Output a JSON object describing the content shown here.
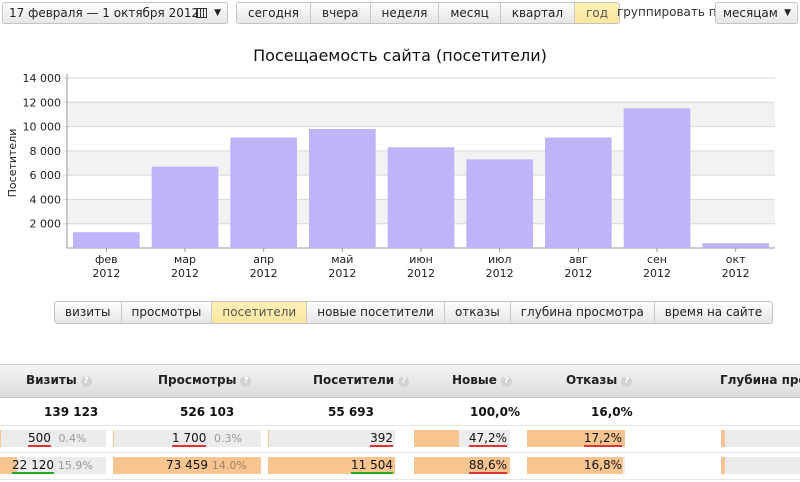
{
  "toolbar": {
    "date_range": "17 февраля — 1 октября 2012",
    "period_buttons": [
      "сегодня",
      "вчера",
      "неделя",
      "месяц",
      "квартал",
      "год"
    ],
    "active_period": "год",
    "group_label": "группировать по",
    "group_value": "месяцам"
  },
  "chart_data": {
    "type": "bar",
    "title": "Посещаемость сайта (посетители)",
    "ylabel": "Посетители",
    "ylim": [
      0,
      14000
    ],
    "yticks": [
      "2 000",
      "4 000",
      "6 000",
      "8 000",
      "10 000",
      "12 000",
      "14 000"
    ],
    "ytick_values": [
      2000,
      4000,
      6000,
      8000,
      10000,
      12000,
      14000
    ],
    "categories": [
      "фев\n2012",
      "мар\n2012",
      "апр\n2012",
      "май\n2012",
      "июн\n2012",
      "июл\n2012",
      "авг\n2012",
      "сен\n2012",
      "окт\n2012"
    ],
    "months": [
      "фев",
      "мар",
      "апр",
      "май",
      "июн",
      "июл",
      "авг",
      "сен",
      "окт"
    ],
    "year": "2012",
    "values": [
      1300,
      6700,
      9100,
      9800,
      8300,
      7300,
      9100,
      11500,
      400
    ],
    "bar_color": "#c1b3f9",
    "grid": true
  },
  "metric_tabs": [
    "визиты",
    "просмотры",
    "посетители",
    "новые посетители",
    "отказы",
    "глубина просмотра",
    "время на сайте"
  ],
  "active_metric": "посетители",
  "table": {
    "headers": {
      "visits": "Визиты",
      "views": "Просмотры",
      "visitors": "Посетители",
      "new": "Новые",
      "bounces": "Отказы",
      "depth": "Глубина просм"
    },
    "totals": {
      "visits": "139 123",
      "views": "526 103",
      "visitors": "55 693",
      "new": "100,0%",
      "bounces": "16,0%"
    },
    "rows": [
      {
        "visits": "500",
        "visits_pct": "0.4%",
        "views": "1 700",
        "views_pct": "0.3%",
        "visitors": "392",
        "new": "47,2%",
        "bounces": "17,2%",
        "fill": {
          "visits": 0.004,
          "views": 0.003,
          "visitors": 0.007,
          "new": 0.472,
          "bounces": 1.0,
          "depth": 0.05
        }
      },
      {
        "visits": "22 120",
        "visits_pct": "15.9%",
        "views": "73 459",
        "views_pct": "14.0%",
        "visitors": "11 504",
        "new": "88,6%",
        "bounces": "16,8%",
        "fill": {
          "visits": 0.159,
          "views": 1.0,
          "visitors": 1.0,
          "new": 1.0,
          "bounces": 0.977,
          "depth": 0.05
        }
      }
    ]
  }
}
